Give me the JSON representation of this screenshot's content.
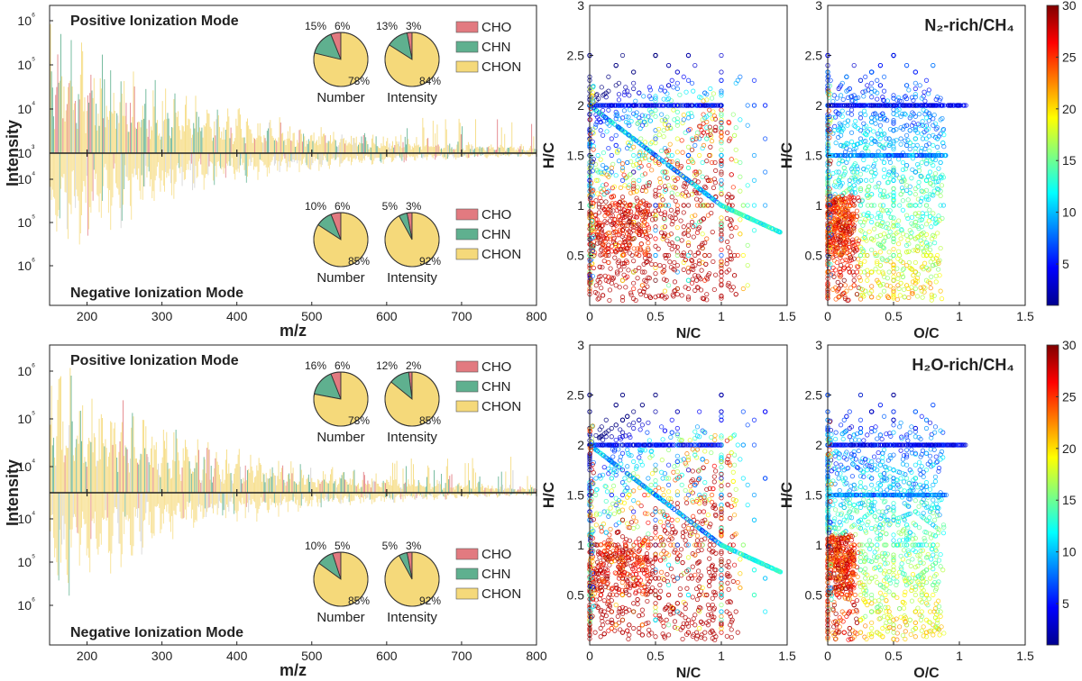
{
  "colors": {
    "CHO": "#e27a80",
    "CHN": "#5fb08f",
    "CHON": "#f5d97a"
  },
  "chart_data": [
    {
      "id": "spec1",
      "type": "bar",
      "xlabel": "m/z",
      "ylabel": "Intensity",
      "xlim": [
        150,
        800
      ],
      "xticks": [
        "200",
        "300",
        "400",
        "500",
        "600",
        "700",
        "800"
      ],
      "yticks_upper": [
        "10³",
        "10⁴",
        "10⁵",
        "10⁶"
      ],
      "yticks_lower": [
        "10⁴",
        "10⁵",
        "10⁶"
      ],
      "top_label": "Positive Ionization Mode",
      "bottom_label": "Negative Ionization Mode",
      "legend": [
        "CHO",
        "CHN",
        "CHON"
      ],
      "pies": [
        {
          "name": "pos-number",
          "label": "Number",
          "values": [
            6,
            15,
            78
          ],
          "labels": [
            "6%",
            "15%",
            "78%"
          ]
        },
        {
          "name": "pos-intensity",
          "label": "Intensity",
          "values": [
            3,
            13,
            84
          ],
          "labels": [
            "3%",
            "13%",
            "84%"
          ]
        },
        {
          "name": "neg-number",
          "label": "Number",
          "values": [
            6,
            10,
            85
          ],
          "labels": [
            "6%",
            "10%",
            "85%"
          ]
        },
        {
          "name": "neg-intensity",
          "label": "Intensity",
          "values": [
            3,
            5,
            92
          ],
          "labels": [
            "3%",
            "5%",
            "92%"
          ]
        }
      ]
    },
    {
      "id": "spec2",
      "type": "bar",
      "xlabel": "m/z",
      "ylabel": "Intensity",
      "xlim": [
        150,
        800
      ],
      "xticks": [
        "200",
        "300",
        "400",
        "500",
        "600",
        "700",
        "800"
      ],
      "yticks_upper": [
        "10⁴",
        "10⁵",
        "10⁶"
      ],
      "yticks_lower": [
        "10⁴",
        "10⁵",
        "10⁶"
      ],
      "top_label": "Positive Ionization Mode",
      "bottom_label": "Negative Ionization Mode",
      "legend": [
        "CHO",
        "CHN",
        "CHON"
      ],
      "pies": [
        {
          "name": "pos-number",
          "label": "Number",
          "values": [
            6,
            16,
            78
          ],
          "labels": [
            "6%",
            "16%",
            "78%"
          ]
        },
        {
          "name": "pos-intensity",
          "label": "Intensity",
          "values": [
            2,
            12,
            85
          ],
          "labels": [
            "2%",
            "12%",
            "85%"
          ]
        },
        {
          "name": "neg-number",
          "label": "Number",
          "values": [
            5,
            10,
            85
          ],
          "labels": [
            "5%",
            "10%",
            "85%"
          ]
        },
        {
          "name": "neg-intensity",
          "label": "Intensity",
          "values": [
            3,
            5,
            92
          ],
          "labels": [
            "3%",
            "5%",
            "92%"
          ]
        }
      ]
    },
    {
      "id": "vk1",
      "type": "scatter",
      "xlabel": "N/C",
      "ylabel": "H/C",
      "xlim": [
        0,
        1.5
      ],
      "ylim": [
        0,
        3
      ],
      "xticks": [
        "0",
        "0.5",
        "1",
        "1.5"
      ],
      "yticks": [
        "0.5",
        "1",
        "1.5",
        "2",
        "2.5",
        "3"
      ]
    },
    {
      "id": "vk2",
      "type": "scatter",
      "xlabel": "O/C",
      "ylabel": "H/C",
      "xlim": [
        0,
        1.5
      ],
      "ylim": [
        0,
        3
      ],
      "xticks": [
        "0",
        "0.5",
        "1",
        "1.5"
      ],
      "yticks": [
        "0.5",
        "1",
        "1.5",
        "2",
        "2.5",
        "3"
      ],
      "title": "N₂-rich/CH₄",
      "colorbar": {
        "range": [
          1,
          30
        ],
        "ticks": [
          "5",
          "10",
          "15",
          "20",
          "25",
          "30"
        ]
      }
    },
    {
      "id": "vk3",
      "type": "scatter",
      "xlabel": "N/C",
      "ylabel": "H/C",
      "xlim": [
        0,
        1.5
      ],
      "ylim": [
        0,
        3
      ],
      "xticks": [
        "0",
        "0.5",
        "1",
        "1.5"
      ],
      "yticks": [
        "0.5",
        "1",
        "1.5",
        "2",
        "2.5",
        "3"
      ]
    },
    {
      "id": "vk4",
      "type": "scatter",
      "xlabel": "O/C",
      "ylabel": "H/C",
      "xlim": [
        0,
        1.5
      ],
      "ylim": [
        0,
        3
      ],
      "xticks": [
        "0",
        "0.5",
        "1",
        "1.5"
      ],
      "yticks": [
        "0.5",
        "1",
        "1.5",
        "2",
        "2.5",
        "3"
      ],
      "title": "H₂O-rich/CH₄",
      "colorbar": {
        "range": [
          1,
          30
        ],
        "ticks": [
          "5",
          "10",
          "15",
          "20",
          "25",
          "30"
        ]
      }
    }
  ]
}
